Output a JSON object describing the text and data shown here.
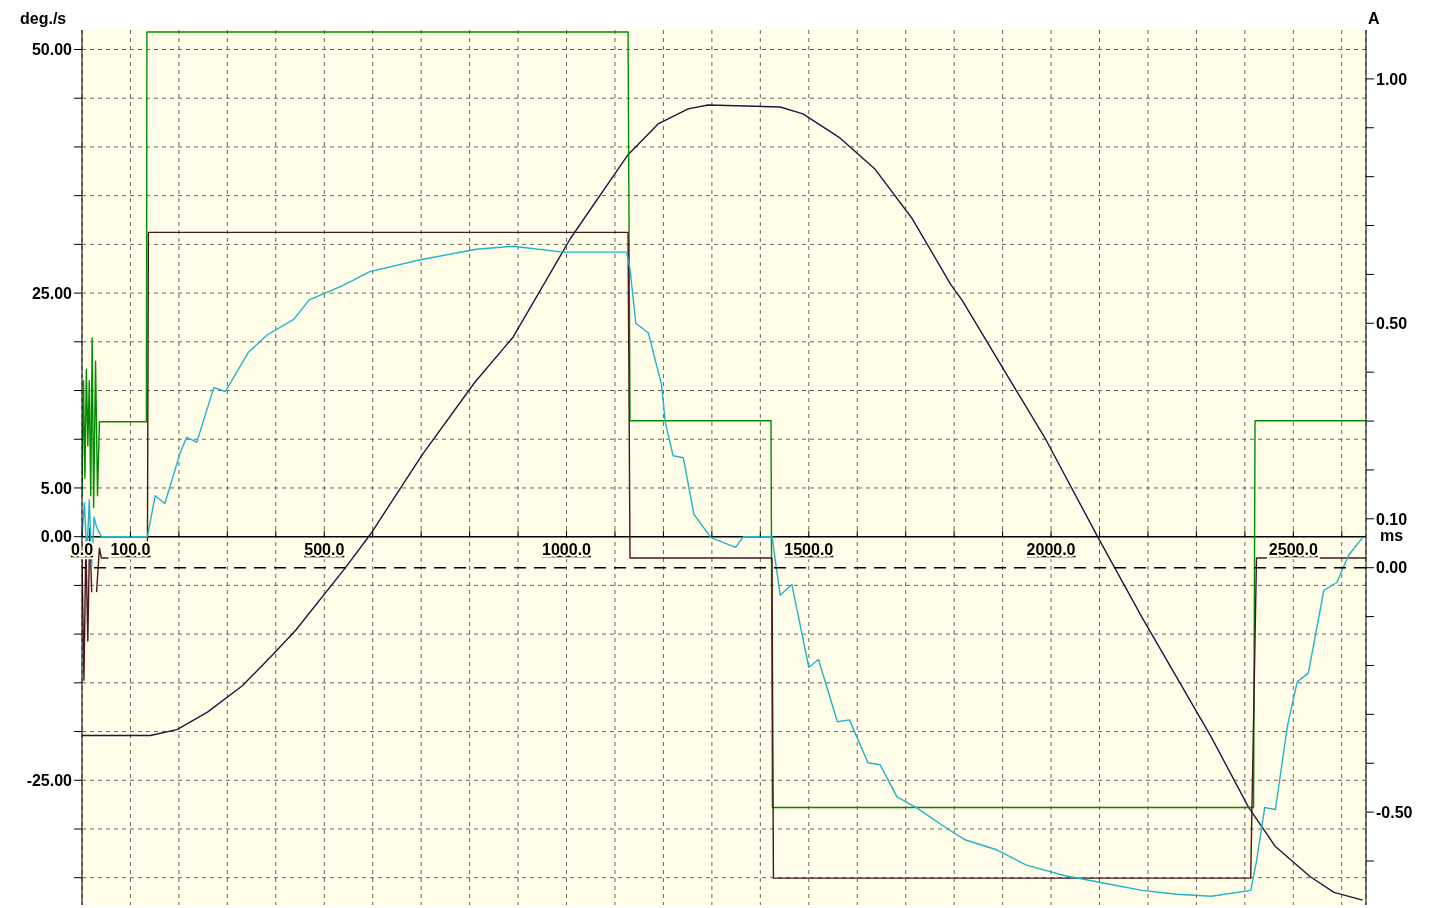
{
  "chart_data": {
    "type": "line",
    "xlabel": "ms",
    "ylabel": "deg./s",
    "y2label": "A",
    "xlim": [
      0,
      2650
    ],
    "xticks": [
      {
        "value": 0,
        "label": "0.0"
      },
      {
        "value": 100,
        "label": "100.0"
      },
      {
        "value": 200,
        "label": null
      },
      {
        "value": 300,
        "label": null
      },
      {
        "value": 400,
        "label": null
      },
      {
        "value": 500,
        "label": "500.0"
      },
      {
        "value": 600,
        "label": null
      },
      {
        "value": 700,
        "label": null
      },
      {
        "value": 800,
        "label": null
      },
      {
        "value": 900,
        "label": null
      },
      {
        "value": 1000,
        "label": "1000.0"
      },
      {
        "value": 1100,
        "label": null
      },
      {
        "value": 1200,
        "label": null
      },
      {
        "value": 1300,
        "label": null
      },
      {
        "value": 1400,
        "label": null
      },
      {
        "value": 1500,
        "label": "1500.0"
      },
      {
        "value": 1600,
        "label": null
      },
      {
        "value": 1700,
        "label": null
      },
      {
        "value": 1800,
        "label": null
      },
      {
        "value": 1900,
        "label": null
      },
      {
        "value": 2000,
        "label": "2000.0"
      },
      {
        "value": 2100,
        "label": null
      },
      {
        "value": 2200,
        "label": null
      },
      {
        "value": 2300,
        "label": null
      },
      {
        "value": 2400,
        "label": null
      },
      {
        "value": 2500,
        "label": "2500.0"
      },
      {
        "value": 2600,
        "label": null
      }
    ],
    "ylim": [
      -37.8,
      52
    ],
    "yticks": [
      {
        "value": -35,
        "label": null
      },
      {
        "value": -30,
        "label": null
      },
      {
        "value": -25,
        "label": "-25.00"
      },
      {
        "value": -20,
        "label": null
      },
      {
        "value": -15,
        "label": null
      },
      {
        "value": -10,
        "label": null
      },
      {
        "value": -5,
        "label": null
      },
      {
        "value": 0,
        "label": "0.00"
      },
      {
        "value": 5,
        "label": "5.00"
      },
      {
        "value": 10,
        "label": null
      },
      {
        "value": 15,
        "label": null
      },
      {
        "value": 20,
        "label": null
      },
      {
        "value": 25,
        "label": "25.00"
      },
      {
        "value": 30,
        "label": null
      },
      {
        "value": 35,
        "label": null
      },
      {
        "value": 40,
        "label": null
      },
      {
        "value": 45,
        "label": null
      },
      {
        "value": 50,
        "label": "50.00"
      }
    ],
    "y2lim": [
      -0.69,
      1.1
    ],
    "y2ticks": [
      {
        "value": -0.6,
        "label": null
      },
      {
        "value": -0.5,
        "label": "-0.50"
      },
      {
        "value": -0.4,
        "label": null
      },
      {
        "value": -0.3,
        "label": null
      },
      {
        "value": -0.2,
        "label": null
      },
      {
        "value": -0.1,
        "label": null
      },
      {
        "value": 0,
        "label": "0.00"
      },
      {
        "value": 0.1,
        "label": "0.10"
      },
      {
        "value": 0.2,
        "label": null
      },
      {
        "value": 0.3,
        "label": null
      },
      {
        "value": 0.4,
        "label": null
      },
      {
        "value": 0.5,
        "label": "0.50"
      },
      {
        "value": 0.6,
        "label": null
      },
      {
        "value": 0.7,
        "label": null
      },
      {
        "value": 0.8,
        "label": null
      },
      {
        "value": 0.9,
        "label": null
      },
      {
        "value": 1,
        "label": "1.00"
      }
    ],
    "grid": true,
    "marker": "none",
    "line_style": "solid",
    "ref_lines": [
      {
        "axis": "y2",
        "value": 0,
        "color": "#000000",
        "line_style": "dashed"
      }
    ],
    "series": [
      {
        "color": "#1a1a40",
        "x": [
          0,
          141,
          196,
          259,
          331,
          394,
          441,
          545,
          596,
          702,
          810,
          890,
          1008,
          1127,
          1190,
          1251,
          1292,
          1441,
          1488,
          1565,
          1637,
          1714,
          1794,
          1816,
          1990,
          2096,
          2188,
          2331,
          2408,
          2463,
          2535,
          2584,
          2643
        ],
        "values": [
          -20.4,
          -20.4,
          -19.8,
          -18.0,
          -15.3,
          -12.1,
          -9.6,
          -3.1,
          0.3,
          8.4,
          15.8,
          20.5,
          30.6,
          39.2,
          42.4,
          43.9,
          44.3,
          44.1,
          43.4,
          40.9,
          37.7,
          32.6,
          25.8,
          24.3,
          9.9,
          0.0,
          -8.3,
          -20.6,
          -27.8,
          -31.8,
          -34.9,
          -36.5,
          -37.3
        ]
      },
      {
        "color": "#008c00",
        "x": [
          0,
          3,
          6,
          9,
          12,
          15,
          18,
          21,
          24,
          28,
          32,
          36,
          133,
          134,
          1127,
          1131,
          1422,
          1425,
          2418,
          2421,
          2650
        ],
        "values": [
          4.2,
          16,
          6,
          17.2,
          9.3,
          16,
          4.2,
          20.4,
          3,
          18,
          4.2,
          11.8,
          11.8,
          51.8,
          51.8,
          11.9,
          11.9,
          -27.8,
          -27.8,
          11.9,
          11.9
        ]
      },
      {
        "color": "#4a1420",
        "axis": "y2",
        "x": [
          0,
          4,
          8,
          12,
          16,
          20,
          25,
          30,
          36,
          40,
          135,
          137,
          1127,
          1131,
          1424,
          1427,
          2412,
          2424,
          2650
        ],
        "values": [
          0.02,
          -0.23,
          0.05,
          -0.15,
          0.08,
          -0.05,
          null,
          -0.05,
          0.04,
          0.02,
          0.02,
          0.686,
          0.686,
          0.02,
          0.02,
          -0.635,
          -0.635,
          0.02,
          0.02
        ]
      },
      {
        "color": "#20b4c8",
        "x": [
          0,
          5,
          10,
          15,
          20,
          25,
          30,
          40,
          135,
          151,
          171,
          202,
          216,
          237,
          272,
          296,
          343,
          382,
          437,
          469,
          539,
          594,
          696,
          814,
          890,
          992,
          1088,
          1124,
          1131,
          1143,
          1169,
          1196,
          1204,
          1220,
          1241,
          1263,
          1298,
          1349,
          1365,
          1424,
          1441,
          1465,
          1500,
          1520,
          1559,
          1584,
          1622,
          1647,
          1682,
          1722,
          1790,
          1822,
          1886,
          1949,
          2029,
          2124,
          2188,
          2259,
          2331,
          2412,
          2424,
          2441,
          2463,
          2488,
          2508,
          2531,
          2563,
          2590,
          2614,
          2643
        ],
        "values": [
          0,
          3.5,
          -2,
          3.8,
          -3,
          2,
          1,
          0,
          0,
          4.2,
          3.4,
          8.5,
          10.2,
          9.7,
          15.3,
          14.9,
          18.9,
          20.7,
          22.3,
          24.3,
          25.8,
          27.2,
          28.4,
          29.5,
          29.8,
          29.2,
          29.2,
          29.2,
          27.5,
          21.9,
          20.9,
          15.6,
          11.7,
          8.3,
          8.1,
          2.3,
          -0.1,
          -1.1,
          0,
          0,
          -6.0,
          -4.9,
          -13.4,
          -12.6,
          -19.0,
          -18.8,
          -23.2,
          -23.4,
          -26.7,
          -27.8,
          -30.1,
          -31.1,
          -32.1,
          -33.7,
          -34.8,
          -35.7,
          -36.3,
          -36.7,
          -36.9,
          -36.3,
          -33.3,
          -27.8,
          -28.0,
          -19.4,
          -14.9,
          -14.0,
          -5.5,
          -4.7,
          -1.9,
          -0.1
        ]
      }
    ]
  }
}
